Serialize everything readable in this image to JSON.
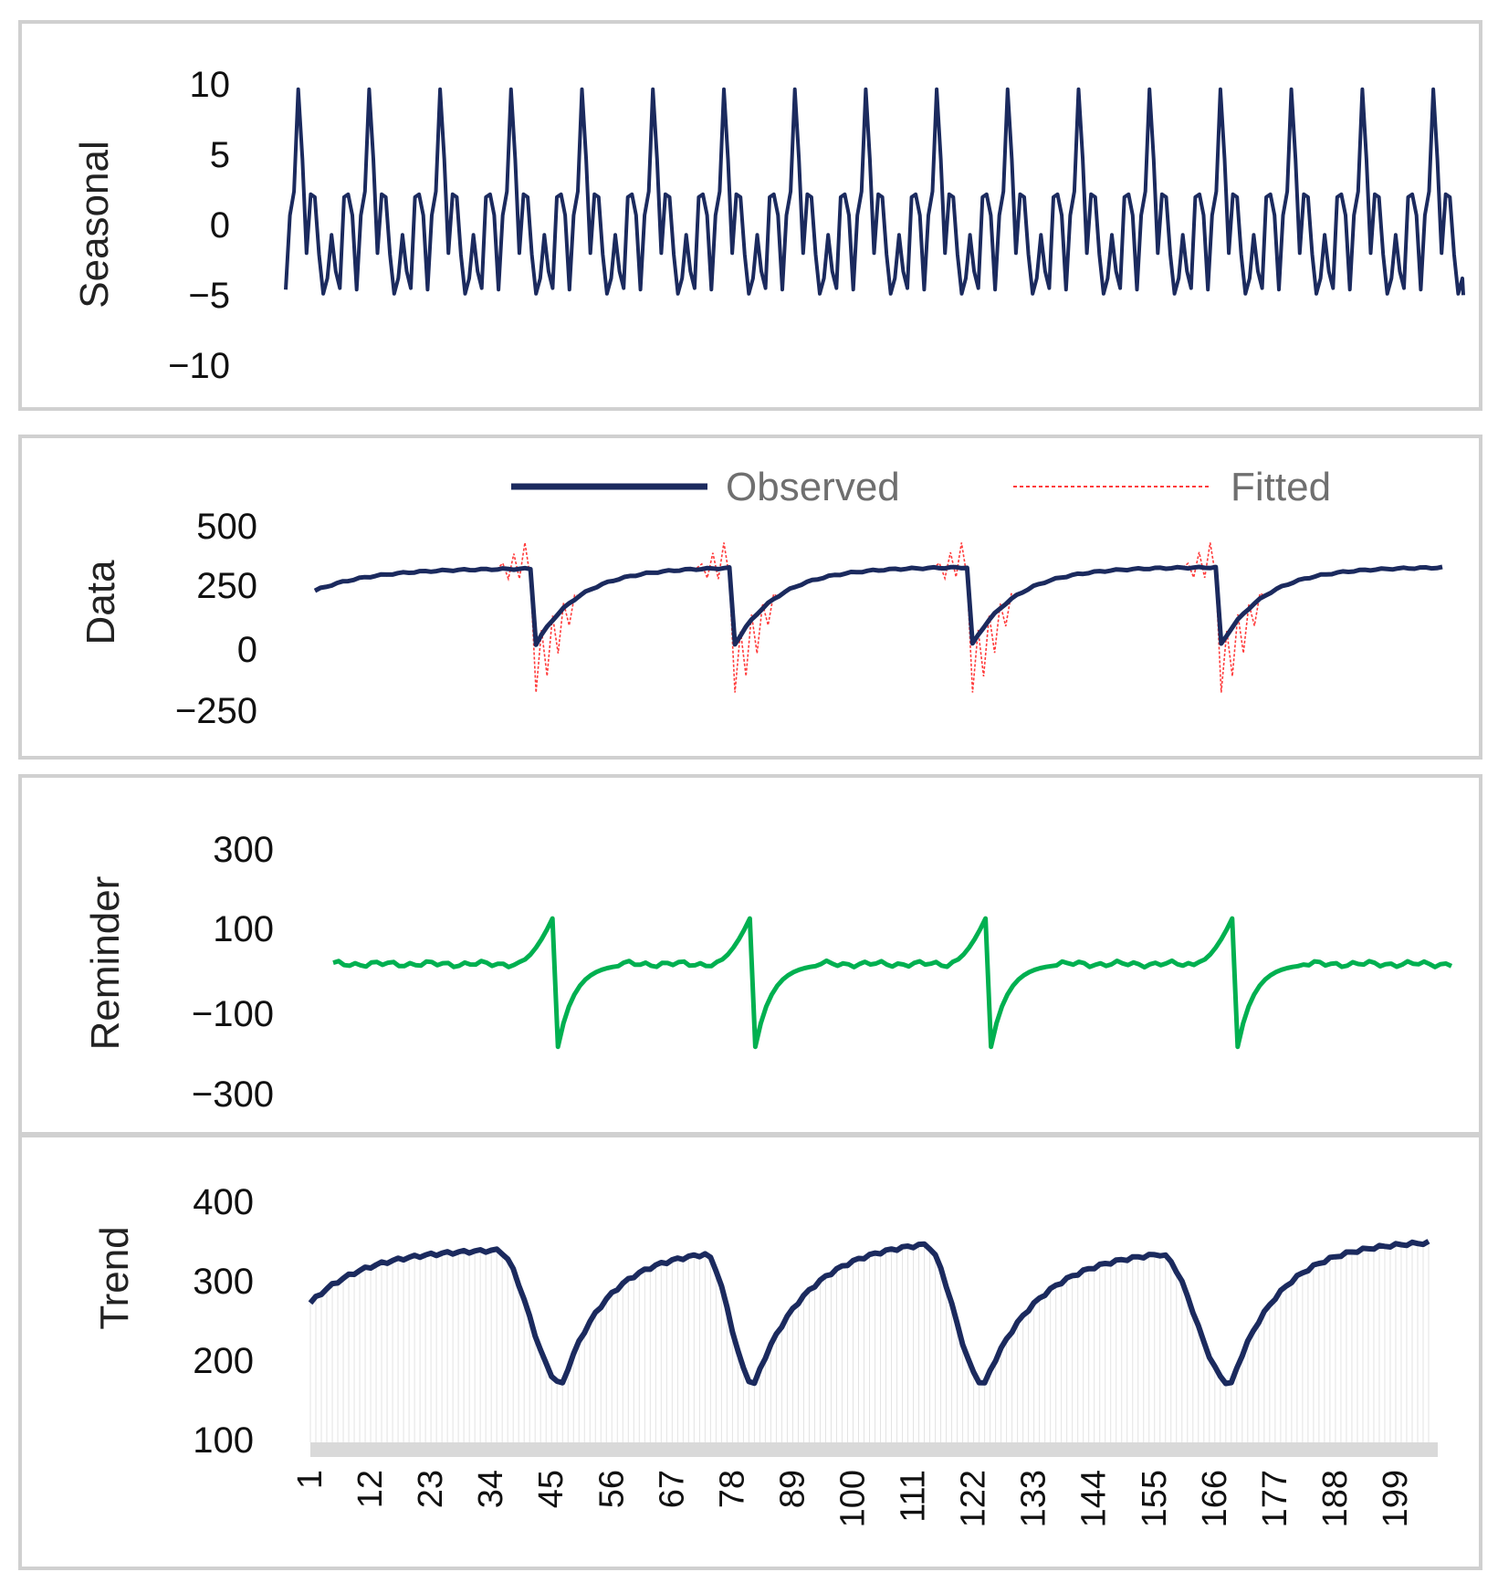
{
  "colors": {
    "observed": "#1b2a5e",
    "fitted": "#ff3b3b",
    "remainder": "#00b050",
    "trend": "#1b2a5e",
    "panel_border": "#d0d0d0",
    "baseline_bar": "#d9d9d9",
    "drop_lines": "#e3e3e3"
  },
  "chart_data": [
    {
      "id": "seasonal",
      "type": "line",
      "ylabel": "Seasonal",
      "yticks": [
        "10",
        "5",
        "0",
        "−5",
        "−10"
      ],
      "ylim": [
        -10,
        10
      ],
      "period": 12,
      "pattern": [
        -4.8,
        0.5,
        2.2,
        9.5,
        4.5,
        -2.2,
        2.0,
        1.8,
        -2.3,
        -5.1,
        -4.0,
        -0.9,
        -3.5,
        -4.7,
        1.8,
        2.0,
        0.5
      ],
      "cycles": 16.6,
      "series": [
        {
          "name": "Seasonal"
        }
      ]
    },
    {
      "id": "data",
      "type": "line",
      "ylabel": "Data",
      "yticks": [
        "500",
        "250",
        "0",
        "−250"
      ],
      "ylim": [
        -250,
        500
      ],
      "legend": {
        "observed": "Observed",
        "fitted": "Fitted",
        "placement": "top"
      },
      "n": 205,
      "drops": [
        40,
        76,
        119,
        164
      ],
      "observed_peak_range": [
        235,
        332
      ],
      "observed_trough": 25,
      "fitted_spike_max": 470,
      "fitted_spike_min": -175,
      "series": [
        {
          "name": "Observed"
        },
        {
          "name": "Fitted"
        }
      ]
    },
    {
      "id": "remainder",
      "type": "line",
      "ylabel": "Reminder",
      "yticks": [
        "300",
        "100",
        "−100",
        "−300"
      ],
      "ylim": [
        -300,
        300
      ],
      "n": 205,
      "drops": [
        40,
        76,
        119,
        164
      ],
      "spike_max": 110,
      "spike_min": -200,
      "series": [
        {
          "name": "Reminder"
        }
      ]
    },
    {
      "id": "trend",
      "type": "area",
      "ylabel": "Trend",
      "yticks": [
        "400",
        "300",
        "200",
        "100"
      ],
      "ylim": [
        100,
        400
      ],
      "x_ticks": [
        "1",
        "12",
        "23",
        "34",
        "45",
        "56",
        "67",
        "78",
        "89",
        "100",
        "111",
        "122",
        "133",
        "144",
        "155",
        "166",
        "177",
        "188",
        "199"
      ],
      "n": 205,
      "troughs": [
        46,
        81,
        123,
        168
      ],
      "peaks": [
        34,
        72,
        112,
        155,
        196
      ],
      "peak_values": [
        335,
        330,
        342,
        330,
        340
      ],
      "trough_value": 170,
      "start_value": 270,
      "series": [
        {
          "name": "Trend"
        }
      ]
    }
  ]
}
